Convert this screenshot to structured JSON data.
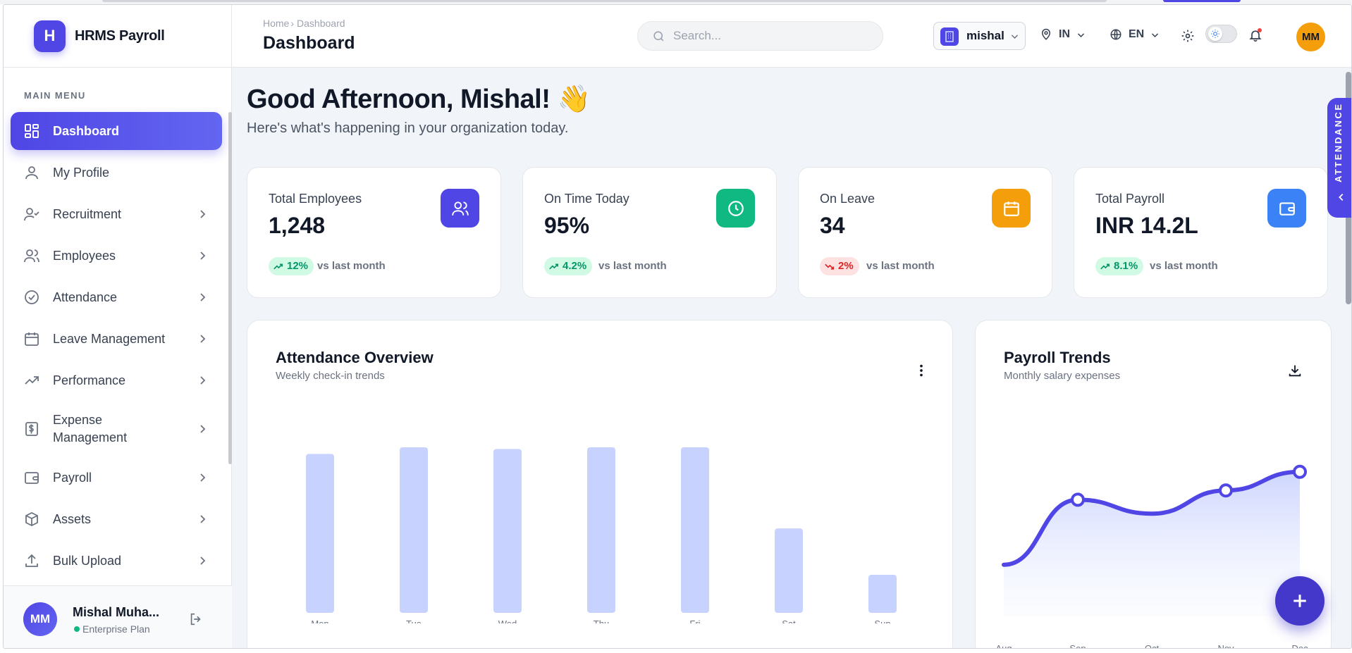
{
  "brand": {
    "logo_letter": "H",
    "name": "HRMS Payroll"
  },
  "sidebar": {
    "menu_label": "MAIN MENU",
    "items": [
      {
        "label": "Dashboard",
        "icon": "grid-icon",
        "active": true
      },
      {
        "label": "My Profile",
        "icon": "user-icon"
      },
      {
        "label": "Recruitment",
        "icon": "user-check-icon"
      },
      {
        "label": "Employees",
        "icon": "users-icon"
      },
      {
        "label": "Attendance",
        "icon": "check-circle-icon"
      },
      {
        "label": "Leave Management",
        "icon": "calendar-icon"
      },
      {
        "label": "Performance",
        "icon": "trending-up-icon"
      },
      {
        "label": "Expense Management",
        "icon": "receipt-icon"
      },
      {
        "label": "Payroll",
        "icon": "wallet-icon"
      },
      {
        "label": "Assets",
        "icon": "box-icon"
      },
      {
        "label": "Bulk Upload",
        "icon": "upload-icon"
      }
    ],
    "user": {
      "initials": "MM",
      "name": "Mishal Muha...",
      "plan": "Enterprise Plan"
    }
  },
  "header": {
    "breadcrumb_home": "Home",
    "breadcrumb_sep": "›",
    "breadcrumb_current": "Dashboard",
    "title": "Dashboard",
    "search_placeholder": "Search...",
    "org": "mishal",
    "region": "IN",
    "language": "EN",
    "avatar_initials": "MM"
  },
  "main": {
    "greeting": "Good Afternoon, Mishal! 👋",
    "subtitle": "Here's what's happening in your organization today.",
    "stats": [
      {
        "label": "Total Employees",
        "value": "1,248",
        "change": "12%",
        "direction": "up",
        "vs": "vs last month",
        "color": "#4f46e5"
      },
      {
        "label": "On Time Today",
        "value": "95%",
        "change": "4.2%",
        "direction": "up",
        "vs": "vs last month",
        "color": "#10b981"
      },
      {
        "label": "On Leave",
        "value": "34",
        "change": "2%",
        "direction": "down",
        "vs": "vs last month",
        "color": "#f59e0b"
      },
      {
        "label": "Total Payroll",
        "value": "INR 14.2L",
        "change": "8.1%",
        "direction": "up",
        "vs": "vs last month",
        "color": "#3b82f6"
      }
    ],
    "attendance": {
      "title": "Attendance Overview",
      "subtitle": "Weekly check-in trends"
    },
    "payroll": {
      "title": "Payroll Trends",
      "subtitle": "Monthly salary expenses"
    },
    "attendance_tab": "ATTENDANCE"
  },
  "chart_data": [
    {
      "type": "bar",
      "categories": [
        "Mon",
        "Tue",
        "Wed",
        "Thu",
        "Fri",
        "Sat",
        "Sun"
      ],
      "values": [
        96,
        100,
        99,
        100,
        100,
        51,
        23
      ],
      "ylim": [
        0,
        100
      ],
      "color": "#c7d2fe",
      "grid": false
    },
    {
      "type": "area",
      "categories": [
        "Aug",
        "Sep",
        "Oct",
        "Nov",
        "Dec"
      ],
      "values": [
        12.4,
        13.8,
        13.5,
        14.0,
        14.4
      ],
      "points": [
        1,
        3,
        4
      ],
      "ylim": [
        12.2,
        14.7
      ],
      "color": "#4f46e5",
      "grid": false
    }
  ]
}
